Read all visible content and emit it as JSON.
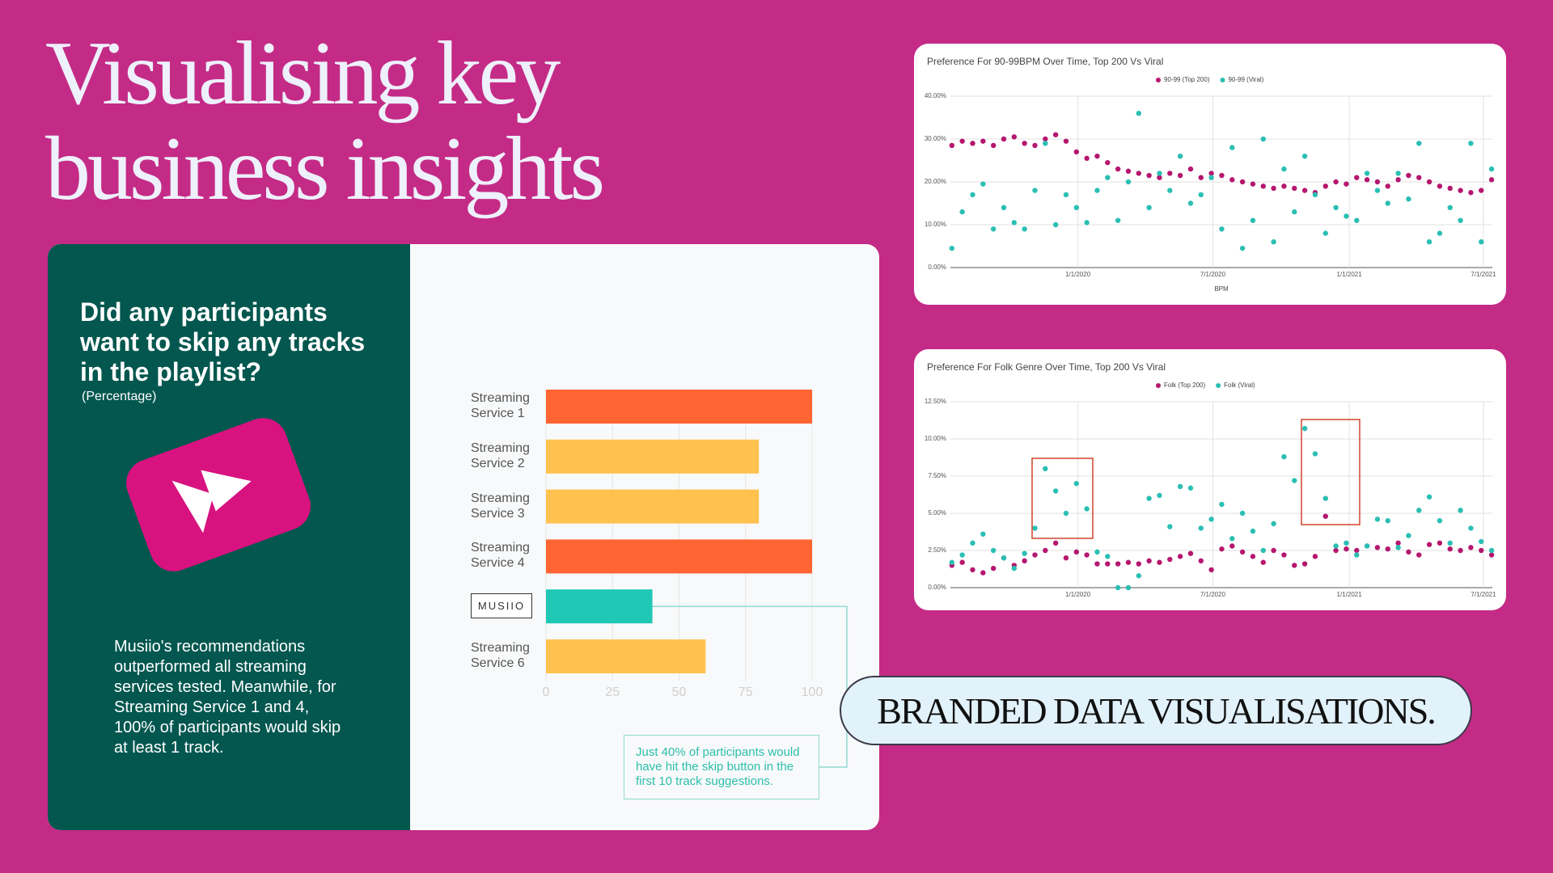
{
  "headline": "Visualising key business insights",
  "panel": {
    "question": "Did any participants want to skip any tracks in the playlist?",
    "note": "(Percentage)",
    "summary": "Musiio's recommendations outperformed all streaming services tested. Meanwhile, for Streaming Service 1 and 4, 100% of participants would skip at least 1 track."
  },
  "tagline": "BRANDED DATA VISUALISATIONS.",
  "chart_data": [
    {
      "type": "bar",
      "orientation": "horizontal",
      "categories": [
        "Streaming Service 1",
        "Streaming Service 2",
        "Streaming Service 3",
        "Streaming Service 4",
        "MUSIIO",
        "Streaming Service 6"
      ],
      "values": [
        100,
        80,
        80,
        100,
        40,
        60
      ],
      "colors": [
        "#ff6433",
        "#ffc24f",
        "#ffc24f",
        "#ff6433",
        "#1fc8b4",
        "#ffc24f"
      ],
      "xlim": [
        0,
        100
      ],
      "xticks": [
        0,
        25,
        50,
        75,
        100
      ],
      "grid": true,
      "annotation": "Just 40% of participants would have hit the skip button in the first 10 track suggestions."
    },
    {
      "type": "scatter",
      "title": "Preference For 90-99BPM Over Time, Top 200 Vs Viral",
      "xlabel": "BPM",
      "x": [
        "2019-07-15",
        "2019-07-29",
        "2019-08-12",
        "2019-08-26",
        "2019-09-09",
        "2019-09-23",
        "2019-10-07",
        "2019-10-21",
        "2019-11-04",
        "2019-11-18",
        "2019-12-02",
        "2019-12-16",
        "2019-12-30",
        "2020-01-13",
        "2020-01-27",
        "2020-02-10",
        "2020-02-24",
        "2020-03-09",
        "2020-03-23",
        "2020-04-06",
        "2020-04-20",
        "2020-05-04",
        "2020-05-18",
        "2020-06-01",
        "2020-06-15",
        "2020-06-29",
        "2020-07-13",
        "2020-07-27",
        "2020-08-10",
        "2020-08-24",
        "2020-09-07",
        "2020-09-21",
        "2020-10-05",
        "2020-10-19",
        "2020-11-02",
        "2020-11-16",
        "2020-11-30",
        "2020-12-14",
        "2020-12-28",
        "2021-01-11",
        "2021-01-25",
        "2021-02-08",
        "2021-02-22",
        "2021-03-08",
        "2021-03-22",
        "2021-04-05",
        "2021-04-19",
        "2021-05-03",
        "2021-05-17",
        "2021-05-31",
        "2021-06-14",
        "2021-06-28",
        "2021-07-12"
      ],
      "series": [
        {
          "name": "90-99 (Top 200)",
          "color": "#b5176f",
          "values": [
            28.5,
            29.5,
            29,
            29.5,
            28.5,
            30,
            30.5,
            29,
            28.5,
            30,
            31,
            29.5,
            27,
            25.5,
            26,
            24.5,
            23,
            22.5,
            22,
            21.5,
            21,
            22,
            21.5,
            23,
            21,
            22,
            21.5,
            20.5,
            20,
            19.5,
            19,
            18.5,
            19,
            18.5,
            18,
            17.5,
            19,
            20,
            19.5,
            21,
            20.5,
            20,
            19,
            20.5,
            21.5,
            21,
            20,
            19,
            18.5,
            18,
            17.5,
            18,
            20.5
          ]
        },
        {
          "name": "90-99 (Viral)",
          "color": "#2bbfb3",
          "values": [
            4.5,
            13,
            17,
            19.5,
            9,
            14,
            10.5,
            9,
            18,
            29,
            10,
            17,
            14,
            10.5,
            18,
            21,
            11,
            20,
            36,
            14,
            22,
            18,
            26,
            15,
            17,
            21,
            9,
            28,
            4.5,
            11,
            30,
            6,
            23,
            13,
            26,
            17,
            8,
            14,
            12,
            11,
            22,
            18,
            15,
            22,
            16,
            29,
            6,
            8,
            14,
            11,
            29,
            6,
            23
          ]
        }
      ],
      "xlim": [
        "2019-07-13",
        "2021-07-13"
      ],
      "xticks": [
        {
          "value": "2020-01-01",
          "label": "1/1/2020"
        },
        {
          "value": "2020-07-01",
          "label": "7/1/2020"
        },
        {
          "value": "2021-01-01",
          "label": "1/1/2021"
        },
        {
          "value": "2021-07-01",
          "label": "7/1/2021"
        }
      ],
      "ylim": [
        0,
        40
      ],
      "yticks": [
        {
          "value": 0,
          "label": "0.00%"
        },
        {
          "value": 10,
          "label": "10.00%"
        },
        {
          "value": 20,
          "label": "20.00%"
        },
        {
          "value": 30,
          "label": "30.00%"
        },
        {
          "value": 40,
          "label": "40.00%"
        }
      ],
      "grid": true,
      "legend": "top"
    },
    {
      "type": "scatter",
      "title": "Preference For Folk Genre Over Time, Top 200 Vs Viral",
      "x": [
        "2019-07-15",
        "2019-07-29",
        "2019-08-12",
        "2019-08-26",
        "2019-09-09",
        "2019-09-23",
        "2019-10-07",
        "2019-10-21",
        "2019-11-04",
        "2019-11-18",
        "2019-12-02",
        "2019-12-16",
        "2019-12-30",
        "2020-01-13",
        "2020-01-27",
        "2020-02-10",
        "2020-02-24",
        "2020-03-09",
        "2020-03-23",
        "2020-04-06",
        "2020-04-20",
        "2020-05-04",
        "2020-05-18",
        "2020-06-01",
        "2020-06-15",
        "2020-06-29",
        "2020-07-13",
        "2020-07-27",
        "2020-08-10",
        "2020-08-24",
        "2020-09-07",
        "2020-09-21",
        "2020-10-05",
        "2020-10-19",
        "2020-11-02",
        "2020-11-16",
        "2020-11-30",
        "2020-12-14",
        "2020-12-28",
        "2021-01-11",
        "2021-01-25",
        "2021-02-08",
        "2021-02-22",
        "2021-03-08",
        "2021-03-22",
        "2021-04-05",
        "2021-04-19",
        "2021-05-03",
        "2021-05-17",
        "2021-05-31",
        "2021-06-14",
        "2021-06-28",
        "2021-07-12"
      ],
      "series": [
        {
          "name": "Folk (Top 200)",
          "color": "#b5176f",
          "values": [
            1.5,
            1.7,
            1.2,
            1.0,
            1.3,
            2.0,
            1.5,
            1.8,
            2.2,
            2.5,
            3,
            2.0,
            2.4,
            2.2,
            1.6,
            1.6,
            1.6,
            1.7,
            1.6,
            1.8,
            1.7,
            1.9,
            2.1,
            2.3,
            1.8,
            1.2,
            2.6,
            2.8,
            2.4,
            2.1,
            1.7,
            2.5,
            2.2,
            1.5,
            1.6,
            2.1,
            4.8,
            2.5,
            2.6,
            2.5,
            2.8,
            2.7,
            2.6,
            3.0,
            2.4,
            2.2,
            2.9,
            3.0,
            2.6,
            2.5,
            2.7,
            2.5,
            2.2
          ]
        },
        {
          "name": "Folk (Viral)",
          "color": "#2bbfb3",
          "values": [
            1.7,
            2.2,
            3.0,
            3.6,
            2.5,
            2.0,
            1.3,
            2.3,
            4.0,
            8.0,
            6.5,
            5.0,
            7.0,
            5.3,
            2.4,
            2.1,
            0.0,
            0.0,
            0.8,
            6.0,
            6.2,
            4.1,
            6.8,
            6.7,
            4.0,
            4.6,
            5.6,
            3.3,
            5.0,
            3.8,
            2.5,
            4.3,
            8.8,
            7.2,
            10.7,
            9.0,
            6.0,
            2.8,
            3.0,
            2.2,
            2.8,
            4.6,
            4.5,
            2.7,
            3.5,
            5.2,
            6.1,
            4.5,
            3.0,
            5.2,
            4.0,
            3.1,
            2.5
          ]
        }
      ],
      "xlim": [
        "2019-07-13",
        "2021-07-13"
      ],
      "xticks": [
        {
          "value": "2020-01-01",
          "label": "1/1/2020"
        },
        {
          "value": "2020-07-01",
          "label": "7/1/2020"
        },
        {
          "value": "2021-01-01",
          "label": "1/1/2021"
        },
        {
          "value": "2021-07-01",
          "label": "7/1/2021"
        }
      ],
      "ylim": [
        0,
        12.5
      ],
      "yticks": [
        {
          "value": 0,
          "label": "0.00%"
        },
        {
          "value": 2.5,
          "label": "2.50%"
        },
        {
          "value": 5,
          "label": "5.00%"
        },
        {
          "value": 7.5,
          "label": "7.50%"
        },
        {
          "value": 10,
          "label": "10.00%"
        },
        {
          "value": 12.5,
          "label": "12.50%"
        }
      ],
      "grid": true,
      "legend": "top"
    }
  ]
}
